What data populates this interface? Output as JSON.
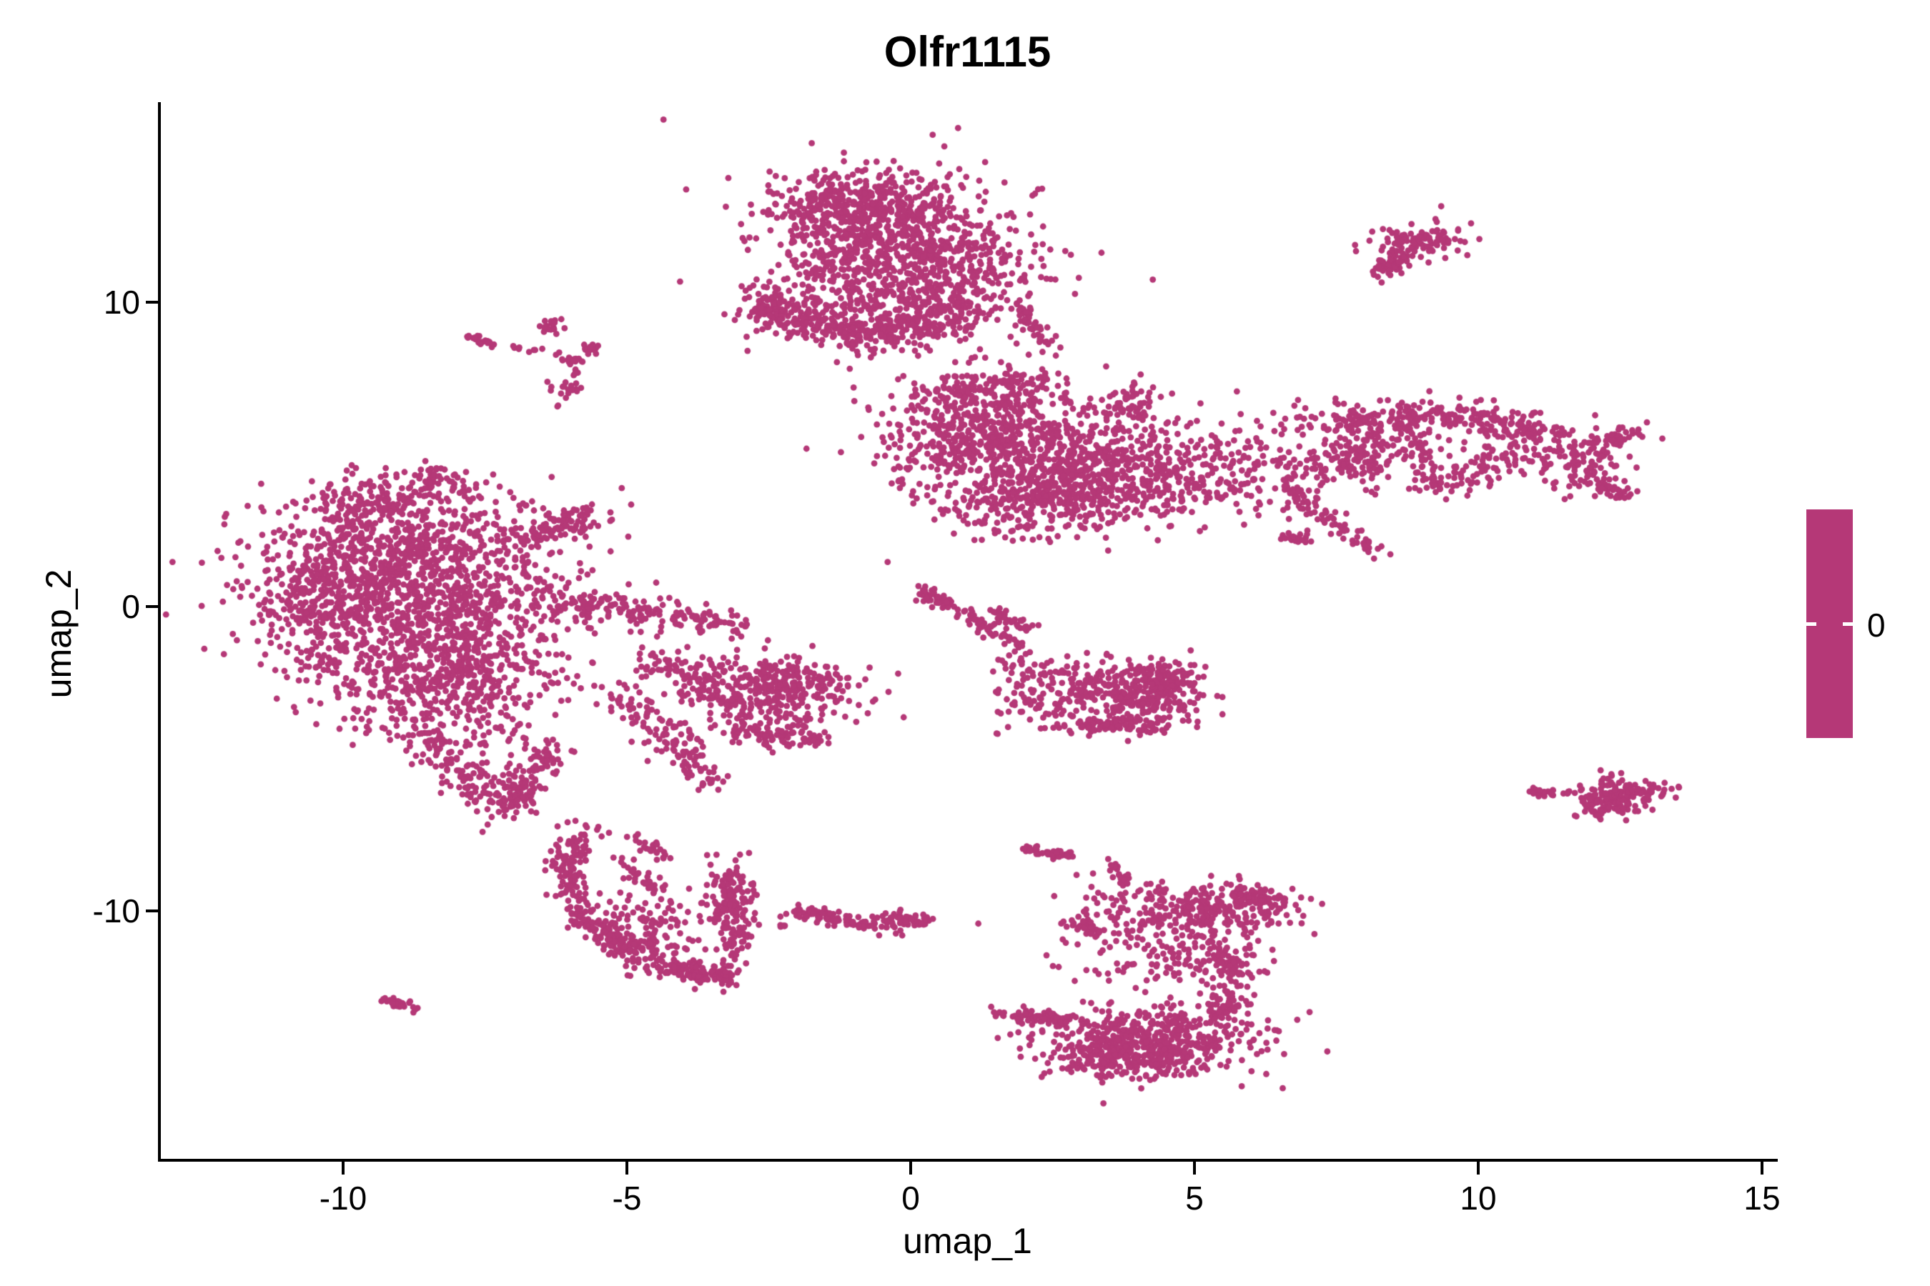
{
  "chart_data": {
    "type": "scatter",
    "title": "Olfr1115",
    "xlabel": "umap_1",
    "ylabel": "umap_2",
    "x_ticks": {
      "values": [
        -10,
        -5,
        0,
        5,
        10,
        15
      ],
      "labels": [
        "-10",
        "-5",
        "0",
        "5",
        "10",
        "15"
      ]
    },
    "y_ticks": {
      "values": [
        10,
        0,
        -10
      ],
      "labels": [
        "10",
        "0",
        "-10"
      ]
    },
    "x_range": [
      -13.2,
      15.3
    ],
    "y_range": [
      -18.2,
      16.6
    ],
    "grid": "off",
    "legend": {
      "position": "right",
      "label": "0",
      "colorbar_single_value": true
    },
    "point_color": "#b53877",
    "background_color": "#ffffff",
    "axis_color": "#000000",
    "clusters": [
      {
        "name": "top-center",
        "components": [
          {
            "kind": "gauss",
            "cx": -0.6,
            "cy": 11.8,
            "sx": 1.05,
            "sy": 1.15,
            "n": 700
          },
          {
            "kind": "gauss",
            "cx": -0.9,
            "cy": 13.3,
            "sx": 0.8,
            "sy": 0.45,
            "n": 250
          },
          {
            "kind": "gauss",
            "cx": -2.45,
            "cy": 9.7,
            "sx": 0.28,
            "sy": 0.35,
            "n": 90
          },
          {
            "kind": "chain",
            "x1": -2.2,
            "y1": 9.5,
            "x2": -0.9,
            "y2": 8.9,
            "jitter": 0.25,
            "n": 120
          },
          {
            "kind": "chain",
            "x1": -0.9,
            "y1": 8.9,
            "x2": 0.3,
            "y2": 9.2,
            "jitter": 0.3,
            "n": 100
          },
          {
            "kind": "gauss",
            "cx": -0.3,
            "cy": 9.6,
            "sx": 0.7,
            "sy": 0.5,
            "n": 180
          },
          {
            "kind": "gauss",
            "cx": 0.9,
            "cy": 10.8,
            "sx": 0.55,
            "sy": 0.9,
            "n": 200
          },
          {
            "kind": "chain",
            "x1": 1.9,
            "y1": 9.8,
            "x2": 2.6,
            "y2": 8.2,
            "jitter": 0.12,
            "n": 45
          },
          {
            "kind": "gauss",
            "cx": 0.0,
            "cy": 11.5,
            "sx": 1.5,
            "sy": 1.6,
            "n": 120
          },
          {
            "kind": "gauss",
            "cx": 2.1,
            "cy": 10.7,
            "sx": 0.3,
            "sy": 0.3,
            "n": 10
          }
        ]
      },
      {
        "name": "top-right-small",
        "components": [
          {
            "kind": "gauss",
            "cx": 9.0,
            "cy": 12.0,
            "sx": 0.45,
            "sy": 0.3,
            "n": 110
          },
          {
            "kind": "gauss",
            "cx": 8.35,
            "cy": 11.1,
            "sx": 0.18,
            "sy": 0.18,
            "n": 35
          },
          {
            "kind": "chain",
            "x1": 8.5,
            "y1": 11.4,
            "x2": 8.8,
            "y2": 11.7,
            "jitter": 0.1,
            "n": 15
          }
        ]
      },
      {
        "name": "mid-right-band",
        "components": [
          {
            "kind": "gauss",
            "cx": 1.3,
            "cy": 5.6,
            "sx": 1.0,
            "sy": 1.0,
            "n": 550
          },
          {
            "kind": "gauss",
            "cx": 3.0,
            "cy": 4.6,
            "sx": 1.0,
            "sy": 0.9,
            "n": 450
          },
          {
            "kind": "gauss",
            "cx": 2.3,
            "cy": 3.4,
            "sx": 0.9,
            "sy": 0.6,
            "n": 250
          },
          {
            "kind": "chain",
            "x1": 0.2,
            "y1": 6.8,
            "x2": 2.3,
            "y2": 7.3,
            "jitter": 0.3,
            "n": 120
          },
          {
            "kind": "gauss",
            "cx": 4.6,
            "cy": 4.4,
            "sx": 0.8,
            "sy": 0.8,
            "n": 160
          },
          {
            "kind": "gauss",
            "cx": 3.9,
            "cy": 6.6,
            "sx": 0.35,
            "sy": 0.35,
            "n": 60
          },
          {
            "kind": "gauss",
            "cx": 6.0,
            "cy": 4.5,
            "sx": 0.7,
            "sy": 0.7,
            "n": 120
          },
          {
            "kind": "chain",
            "x1": 7.0,
            "y1": 6.0,
            "x2": 9.5,
            "y2": 6.3,
            "jitter": 0.28,
            "n": 160
          },
          {
            "kind": "chain",
            "x1": 9.5,
            "y1": 6.3,
            "x2": 11.3,
            "y2": 5.7,
            "jitter": 0.25,
            "n": 120
          },
          {
            "kind": "chain",
            "x1": 7.2,
            "y1": 4.6,
            "x2": 9.0,
            "y2": 5.4,
            "jitter": 0.3,
            "n": 130
          },
          {
            "kind": "chain",
            "x1": 9.0,
            "y1": 3.9,
            "x2": 10.8,
            "y2": 5.0,
            "jitter": 0.3,
            "n": 110
          },
          {
            "kind": "gauss",
            "cx": 11.8,
            "cy": 4.9,
            "sx": 0.45,
            "sy": 0.5,
            "n": 110
          },
          {
            "kind": "chain",
            "x1": 11.9,
            "y1": 4.2,
            "x2": 12.6,
            "y2": 3.6,
            "jitter": 0.15,
            "n": 45
          },
          {
            "kind": "chain",
            "x1": 12.2,
            "y1": 5.4,
            "x2": 12.9,
            "y2": 5.8,
            "jitter": 0.15,
            "n": 35
          },
          {
            "kind": "chain",
            "x1": 6.6,
            "y1": 3.8,
            "x2": 8.4,
            "y2": 1.6,
            "jitter": 0.15,
            "n": 70
          },
          {
            "kind": "chain",
            "x1": 6.5,
            "y1": 2.3,
            "x2": 7.0,
            "y2": 2.2,
            "jitter": 0.08,
            "n": 25
          },
          {
            "kind": "gauss",
            "cx": 8.3,
            "cy": 5.3,
            "sx": 0.9,
            "sy": 0.7,
            "n": 60
          }
        ]
      },
      {
        "name": "left-large-blob",
        "components": [
          {
            "kind": "gauss",
            "cx": -8.8,
            "cy": 1.8,
            "sx": 1.3,
            "sy": 1.1,
            "n": 700
          },
          {
            "kind": "gauss",
            "cx": -8.6,
            "cy": -0.3,
            "sx": 1.35,
            "sy": 1.1,
            "n": 700
          },
          {
            "kind": "gauss",
            "cx": -10.5,
            "cy": 0.2,
            "sx": 0.45,
            "sy": 1.2,
            "n": 200
          },
          {
            "kind": "chain",
            "x1": -10.3,
            "y1": 3.2,
            "x2": -7.8,
            "y2": 4.2,
            "jitter": 0.35,
            "n": 150
          },
          {
            "kind": "chain",
            "x1": -6.9,
            "y1": 2.2,
            "x2": -5.6,
            "y2": 3.0,
            "jitter": 0.25,
            "n": 90
          },
          {
            "kind": "chain",
            "x1": -6.3,
            "y1": 0.2,
            "x2": -4.4,
            "y2": -0.3,
            "jitter": 0.3,
            "n": 110
          },
          {
            "kind": "chain",
            "x1": -4.4,
            "y1": -0.3,
            "x2": -3.0,
            "y2": -0.6,
            "jitter": 0.2,
            "n": 70
          },
          {
            "kind": "gauss",
            "cx": -8.2,
            "cy": -2.6,
            "sx": 1.1,
            "sy": 0.9,
            "n": 450
          },
          {
            "kind": "chain",
            "x1": -8.6,
            "y1": -4.0,
            "x2": -7.1,
            "y2": -6.7,
            "jitter": 0.3,
            "n": 160
          },
          {
            "kind": "chain",
            "x1": -7.1,
            "y1": -6.7,
            "x2": -6.3,
            "y2": -4.6,
            "jitter": 0.25,
            "n": 120
          },
          {
            "kind": "chain",
            "x1": -5.2,
            "y1": -2.7,
            "x2": -3.4,
            "y2": -5.9,
            "jitter": 0.25,
            "n": 130
          }
        ]
      },
      {
        "name": "mid-left-lower",
        "components": [
          {
            "kind": "gauss",
            "cx": -2.6,
            "cy": -2.9,
            "sx": 0.8,
            "sy": 0.65,
            "n": 280
          },
          {
            "kind": "chain",
            "x1": -3.6,
            "y1": -2.2,
            "x2": -1.2,
            "y2": -2.6,
            "jitter": 0.3,
            "n": 120
          },
          {
            "kind": "chain",
            "x1": -3.3,
            "y1": -4.1,
            "x2": -1.6,
            "y2": -4.4,
            "jitter": 0.2,
            "n": 80
          },
          {
            "kind": "chain",
            "x1": -4.6,
            "y1": -1.6,
            "x2": -3.6,
            "y2": -2.6,
            "jitter": 0.25,
            "n": 60
          }
        ]
      },
      {
        "name": "center-arrow",
        "components": [
          {
            "kind": "chain",
            "x1": 0.15,
            "y1": 0.55,
            "x2": 2.0,
            "y2": -1.35,
            "jitter": 0.09,
            "n": 90
          },
          {
            "kind": "chain",
            "x1": 1.45,
            "y1": -0.15,
            "x2": 2.1,
            "y2": -0.75,
            "jitter": 0.09,
            "n": 40
          },
          {
            "kind": "gauss",
            "cx": 0.3,
            "cy": 0.3,
            "sx": 0.15,
            "sy": 0.15,
            "n": 12
          }
        ]
      },
      {
        "name": "right-of-center",
        "components": [
          {
            "kind": "gauss",
            "cx": 4.0,
            "cy": -2.9,
            "sx": 0.55,
            "sy": 0.55,
            "n": 260
          },
          {
            "kind": "gauss",
            "cx": 4.5,
            "cy": -2.4,
            "sx": 0.3,
            "sy": 0.3,
            "n": 80
          },
          {
            "kind": "gauss",
            "cx": 2.6,
            "cy": -2.9,
            "sx": 0.7,
            "sy": 0.6,
            "n": 140
          },
          {
            "kind": "chain",
            "x1": 2.9,
            "y1": -3.9,
            "x2": 4.3,
            "y2": -4.0,
            "jitter": 0.12,
            "n": 60
          },
          {
            "kind": "chain",
            "x1": 1.7,
            "y1": -1.8,
            "x2": 2.9,
            "y2": -2.1,
            "jitter": 0.25,
            "n": 40
          }
        ]
      },
      {
        "name": "bottom-right-small",
        "components": [
          {
            "kind": "gauss",
            "cx": 12.3,
            "cy": -6.3,
            "sx": 0.28,
            "sy": 0.33,
            "n": 130
          },
          {
            "kind": "gauss",
            "cx": 12.9,
            "cy": -6.1,
            "sx": 0.3,
            "sy": 0.2,
            "n": 50
          },
          {
            "kind": "chain",
            "x1": 10.9,
            "y1": -6.05,
            "x2": 11.35,
            "y2": -6.15,
            "jitter": 0.06,
            "n": 22
          },
          {
            "kind": "gauss",
            "cx": 11.6,
            "cy": -6.1,
            "sx": 0.12,
            "sy": 0.05,
            "n": 6
          }
        ]
      },
      {
        "name": "bottom-left-crescent",
        "components": [
          {
            "kind": "chain",
            "x1": -5.7,
            "y1": -7.3,
            "x2": -6.1,
            "y2": -8.6,
            "jitter": 0.18,
            "n": 70
          },
          {
            "kind": "chain",
            "x1": -6.1,
            "y1": -8.6,
            "x2": -5.8,
            "y2": -10.2,
            "jitter": 0.18,
            "n": 60
          },
          {
            "kind": "chain",
            "x1": -5.8,
            "y1": -10.2,
            "x2": -4.3,
            "y2": -11.8,
            "jitter": 0.22,
            "n": 160
          },
          {
            "kind": "chain",
            "x1": -4.3,
            "y1": -11.8,
            "x2": -3.3,
            "y2": -12.3,
            "jitter": 0.18,
            "n": 100
          },
          {
            "kind": "chain",
            "x1": -3.3,
            "y1": -12.3,
            "x2": -2.95,
            "y2": -10.0,
            "jitter": 0.15,
            "n": 90
          },
          {
            "kind": "gauss",
            "cx": -3.2,
            "cy": -9.4,
            "sx": 0.25,
            "sy": 0.5,
            "n": 110
          },
          {
            "kind": "gauss",
            "cx": -4.6,
            "cy": -10.3,
            "sx": 0.55,
            "sy": 0.6,
            "n": 90
          },
          {
            "kind": "chain",
            "x1": -5.1,
            "y1": -8.3,
            "x2": -4.4,
            "y2": -9.5,
            "jitter": 0.1,
            "n": 35
          },
          {
            "kind": "chain",
            "x1": -4.9,
            "y1": -7.6,
            "x2": -4.3,
            "y2": -8.3,
            "jitter": 0.15,
            "n": 25
          }
        ]
      },
      {
        "name": "far-left-dash",
        "components": [
          {
            "kind": "chain",
            "x1": -9.25,
            "y1": -12.9,
            "x2": -8.75,
            "y2": -13.25,
            "jitter": 0.07,
            "n": 30
          }
        ]
      },
      {
        "name": "bottom-small-streak",
        "components": [
          {
            "kind": "chain",
            "x1": -2.1,
            "y1": -10.0,
            "x2": -0.6,
            "y2": -10.5,
            "jitter": 0.12,
            "n": 80
          },
          {
            "kind": "gauss",
            "cx": -0.35,
            "cy": -10.35,
            "sx": 0.2,
            "sy": 0.2,
            "n": 40
          },
          {
            "kind": "chain",
            "x1": -0.3,
            "y1": -10.2,
            "x2": 0.35,
            "y2": -10.4,
            "jitter": 0.1,
            "n": 25
          },
          {
            "kind": "gauss",
            "cx": -2.25,
            "cy": -10.45,
            "sx": 0.07,
            "sy": 0.05,
            "n": 5
          }
        ]
      },
      {
        "name": "bottom-center-large",
        "components": [
          {
            "kind": "chain",
            "x1": 2.0,
            "y1": -7.95,
            "x2": 2.85,
            "y2": -8.2,
            "jitter": 0.07,
            "n": 45
          },
          {
            "kind": "chain",
            "x1": 3.5,
            "y1": -8.5,
            "x2": 3.8,
            "y2": -9.1,
            "jitter": 0.08,
            "n": 25
          },
          {
            "kind": "gauss",
            "cx": 5.0,
            "cy": -9.9,
            "sx": 1.0,
            "sy": 0.45,
            "n": 280
          },
          {
            "kind": "chain",
            "x1": 5.7,
            "y1": -9.4,
            "x2": 6.5,
            "y2": -9.7,
            "jitter": 0.15,
            "n": 60
          },
          {
            "kind": "chain",
            "x1": 2.7,
            "y1": -10.4,
            "x2": 3.35,
            "y2": -10.7,
            "jitter": 0.08,
            "n": 35
          },
          {
            "kind": "gauss",
            "cx": 4.5,
            "cy": -11.3,
            "sx": 0.9,
            "sy": 0.7,
            "n": 140
          },
          {
            "kind": "gauss",
            "cx": 5.55,
            "cy": -11.8,
            "sx": 0.3,
            "sy": 0.35,
            "n": 80
          },
          {
            "kind": "gauss",
            "cx": 5.6,
            "cy": -13.2,
            "sx": 0.25,
            "sy": 0.3,
            "n": 60
          },
          {
            "kind": "chain",
            "x1": 1.6,
            "y1": -13.4,
            "x2": 3.0,
            "y2": -13.6,
            "jitter": 0.1,
            "n": 70
          },
          {
            "kind": "gauss",
            "cx": 4.3,
            "cy": -14.2,
            "sx": 1.0,
            "sy": 0.55,
            "n": 420
          },
          {
            "kind": "gauss",
            "cx": 3.6,
            "cy": -14.6,
            "sx": 0.5,
            "sy": 0.35,
            "n": 150
          },
          {
            "kind": "gauss",
            "cx": 4.0,
            "cy": -15.1,
            "sx": 0.5,
            "sy": 0.25,
            "n": 80
          }
        ]
      },
      {
        "name": "top-left-specks",
        "components": [
          {
            "kind": "chain",
            "x1": -7.75,
            "y1": 8.85,
            "x2": -7.35,
            "y2": 8.6,
            "jitter": 0.05,
            "n": 22
          },
          {
            "kind": "chain",
            "x1": -7.1,
            "y1": 8.5,
            "x2": -6.5,
            "y2": 8.4,
            "jitter": 0.05,
            "n": 8
          },
          {
            "kind": "gauss",
            "cx": -6.3,
            "cy": 9.2,
            "sx": 0.12,
            "sy": 0.12,
            "n": 18
          },
          {
            "kind": "gauss",
            "cx": -6.0,
            "cy": 8.1,
            "sx": 0.15,
            "sy": 0.1,
            "n": 16
          },
          {
            "kind": "gauss",
            "cx": -5.6,
            "cy": 8.45,
            "sx": 0.12,
            "sy": 0.1,
            "n": 16
          },
          {
            "kind": "chain",
            "x1": -5.9,
            "y1": 7.8,
            "x2": -5.85,
            "y2": 7.5,
            "jitter": 0.04,
            "n": 6
          },
          {
            "kind": "gauss",
            "cx": -6.0,
            "cy": 7.15,
            "sx": 0.13,
            "sy": 0.12,
            "n": 16
          },
          {
            "kind": "gauss",
            "cx": -6.2,
            "cy": 6.6,
            "sx": 0.05,
            "sy": 0.05,
            "n": 2
          }
        ]
      }
    ]
  }
}
